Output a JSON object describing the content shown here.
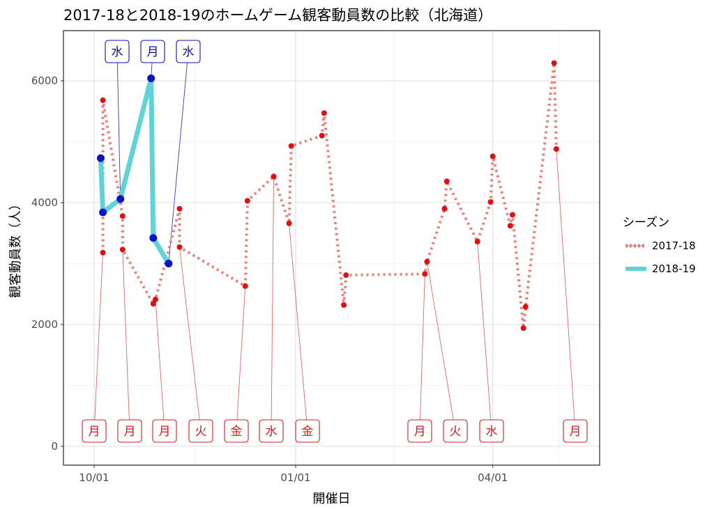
{
  "chart_data": {
    "type": "line",
    "title": "2017-18と2018-19のホームゲーム観客動員数の比較（北海道）",
    "xlabel": "開催日",
    "ylabel": "観客動員数（人）",
    "x_ticks": [
      "10/01",
      "01/01",
      "04/01"
    ],
    "y_ticks": [
      "0",
      "2000",
      "4000",
      "6000"
    ],
    "ylim": [
      -300,
      6800
    ],
    "grid": true,
    "legend": {
      "title": "シーズン",
      "position": "right"
    },
    "series": [
      {
        "name": "2017-18",
        "color": "#e6817a",
        "point_color": "#dd1111",
        "line_style": "dotted",
        "points": [
          {
            "x": "10/05",
            "y": 3180
          },
          {
            "x": "10/05",
            "y": 5680
          },
          {
            "x": "10/14",
            "y": 3780
          },
          {
            "x": "10/14",
            "y": 3230
          },
          {
            "x": "10/28",
            "y": 2340
          },
          {
            "x": "10/29",
            "y": 2410
          },
          {
            "x": "11/09",
            "y": 3900
          },
          {
            "x": "11/09",
            "y": 3270
          },
          {
            "x": "12/09",
            "y": 2630
          },
          {
            "x": "12/10",
            "y": 4030
          },
          {
            "x": "12/22",
            "y": 4430
          },
          {
            "x": "12/29",
            "y": 3660
          },
          {
            "x": "12/30",
            "y": 4930
          },
          {
            "x": "01/13",
            "y": 5100
          },
          {
            "x": "01/14",
            "y": 5470
          },
          {
            "x": "01/23",
            "y": 2320
          },
          {
            "x": "01/24",
            "y": 2810
          },
          {
            "x": "03/01",
            "y": 2830
          },
          {
            "x": "03/02",
            "y": 3030
          },
          {
            "x": "03/10",
            "y": 3900
          },
          {
            "x": "03/11",
            "y": 4350
          },
          {
            "x": "03/25",
            "y": 3360
          },
          {
            "x": "03/31",
            "y": 4010
          },
          {
            "x": "04/01",
            "y": 4760
          },
          {
            "x": "04/09",
            "y": 3620
          },
          {
            "x": "04/10",
            "y": 3800
          },
          {
            "x": "04/15",
            "y": 1940
          },
          {
            "x": "04/16",
            "y": 2290
          },
          {
            "x": "04/29",
            "y": 6290
          },
          {
            "x": "04/30",
            "y": 4880
          }
        ]
      },
      {
        "name": "2018-19",
        "color": "#5fd3d6",
        "point_color": "#0b11cc",
        "line_style": "solid",
        "points": [
          {
            "x": "10/04",
            "y": 4730
          },
          {
            "x": "10/05",
            "y": 3840
          },
          {
            "x": "10/13",
            "y": 4060
          },
          {
            "x": "10/27",
            "y": 6040
          },
          {
            "x": "10/28",
            "y": 3420
          },
          {
            "x": "11/04",
            "y": 3000
          }
        ]
      }
    ],
    "annotations_2017_18": [
      {
        "label": "月",
        "x": "10/05",
        "y": 3180
      },
      {
        "label": "月",
        "x": "10/14",
        "y": 3230
      },
      {
        "label": "月",
        "x": "10/29",
        "y": 2410
      },
      {
        "label": "火",
        "x": "11/09",
        "y": 3270
      },
      {
        "label": "金",
        "x": "12/09",
        "y": 2630
      },
      {
        "label": "水",
        "x": "12/22",
        "y": 4430
      },
      {
        "label": "金",
        "x": "12/29",
        "y": 3660
      },
      {
        "label": "月",
        "x": "03/01",
        "y": 2830
      },
      {
        "label": "火",
        "x": "03/02",
        "y": 3030
      },
      {
        "label": "水",
        "x": "03/25",
        "y": 3360
      },
      {
        "label": "月",
        "x": "04/30",
        "y": 4880
      }
    ],
    "annotations_2018_19": [
      {
        "label": "水",
        "x": "10/13",
        "y": 4060
      },
      {
        "label": "月",
        "x": "10/27",
        "y": 6040
      },
      {
        "label": "水",
        "x": "11/04",
        "y": 3000
      }
    ]
  }
}
